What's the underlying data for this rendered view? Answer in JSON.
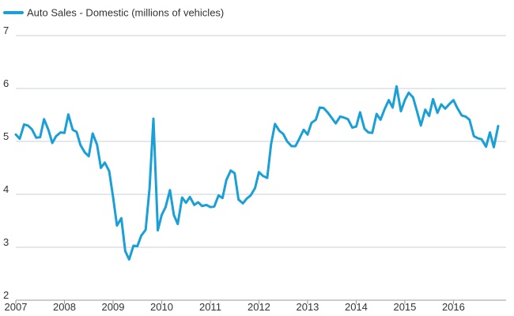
{
  "chart_data": {
    "type": "line",
    "title": "",
    "xlabel": "",
    "ylabel": "",
    "ylim": [
      2,
      7
    ],
    "yticks": [
      2,
      3,
      4,
      5,
      6,
      7
    ],
    "xlim": [
      2007.0,
      2016.92
    ],
    "xticks": [
      "2007",
      "2008",
      "2009",
      "2010",
      "2011",
      "2012",
      "2013",
      "2014",
      "2015",
      "2016"
    ],
    "grid": "horizontal",
    "legend": "top-left",
    "series": [
      {
        "name": "Auto Sales - Domestic  (millions of vehicles)",
        "color": "#1a9fd6",
        "x": [
          2007.0,
          2007.08,
          2007.17,
          2007.25,
          2007.33,
          2007.42,
          2007.5,
          2007.58,
          2007.67,
          2007.75,
          2007.83,
          2007.92,
          2008.0,
          2008.08,
          2008.17,
          2008.25,
          2008.33,
          2008.42,
          2008.5,
          2008.58,
          2008.67,
          2008.75,
          2008.83,
          2008.92,
          2009.0,
          2009.08,
          2009.17,
          2009.25,
          2009.33,
          2009.42,
          2009.5,
          2009.58,
          2009.67,
          2009.75,
          2009.83,
          2009.92,
          2010.0,
          2010.08,
          2010.17,
          2010.25,
          2010.33,
          2010.42,
          2010.5,
          2010.58,
          2010.67,
          2010.75,
          2010.83,
          2010.92,
          2011.0,
          2011.08,
          2011.17,
          2011.25,
          2011.33,
          2011.42,
          2011.5,
          2011.58,
          2011.67,
          2011.75,
          2011.83,
          2011.92,
          2012.0,
          2012.08,
          2012.17,
          2012.25,
          2012.33,
          2012.42,
          2012.5,
          2012.58,
          2012.67,
          2012.75,
          2012.83,
          2012.92,
          2013.0,
          2013.08,
          2013.17,
          2013.25,
          2013.33,
          2013.42,
          2013.5,
          2013.58,
          2013.67,
          2013.75,
          2013.83,
          2013.92,
          2014.0,
          2014.08,
          2014.17,
          2014.25,
          2014.33,
          2014.42,
          2014.5,
          2014.58,
          2014.67,
          2014.75,
          2014.83,
          2014.92,
          2015.0,
          2015.08,
          2015.17,
          2015.25,
          2015.33,
          2015.42,
          2015.5,
          2015.58,
          2015.67,
          2015.75,
          2015.83,
          2015.92,
          2016.0,
          2016.08,
          2016.17,
          2016.25,
          2016.33,
          2016.42,
          2016.5,
          2016.58,
          2016.67,
          2016.75,
          2016.83,
          2016.92
        ],
        "values": [
          5.13,
          5.05,
          5.32,
          5.3,
          5.23,
          5.07,
          5.08,
          5.42,
          5.22,
          4.97,
          5.1,
          5.17,
          5.16,
          5.51,
          5.22,
          5.18,
          4.93,
          4.79,
          4.72,
          5.15,
          4.94,
          4.5,
          4.6,
          4.44,
          3.95,
          3.41,
          3.55,
          2.93,
          2.77,
          3.03,
          3.02,
          3.22,
          3.33,
          4.11,
          5.43,
          3.32,
          3.61,
          3.76,
          4.08,
          3.61,
          3.44,
          3.94,
          3.84,
          3.95,
          3.8,
          3.85,
          3.78,
          3.8,
          3.76,
          3.77,
          3.98,
          3.93,
          4.27,
          4.45,
          4.4,
          3.9,
          3.83,
          3.92,
          3.98,
          4.12,
          4.42,
          4.35,
          4.31,
          4.95,
          5.33,
          5.2,
          5.14,
          5.0,
          4.91,
          4.91,
          5.05,
          5.22,
          5.13,
          5.35,
          5.41,
          5.64,
          5.63,
          5.54,
          5.44,
          5.34,
          5.47,
          5.45,
          5.42,
          5.26,
          5.28,
          5.55,
          5.24,
          5.17,
          5.16,
          5.52,
          5.41,
          5.6,
          5.78,
          5.64,
          6.04,
          5.57,
          5.78,
          5.92,
          5.83,
          5.57,
          5.3,
          5.6,
          5.48,
          5.8,
          5.54,
          5.7,
          5.62,
          5.71,
          5.78,
          5.63,
          5.49,
          5.47,
          5.41,
          5.1,
          5.06,
          5.04,
          4.9,
          5.17,
          4.89,
          5.29
        ]
      }
    ]
  }
}
